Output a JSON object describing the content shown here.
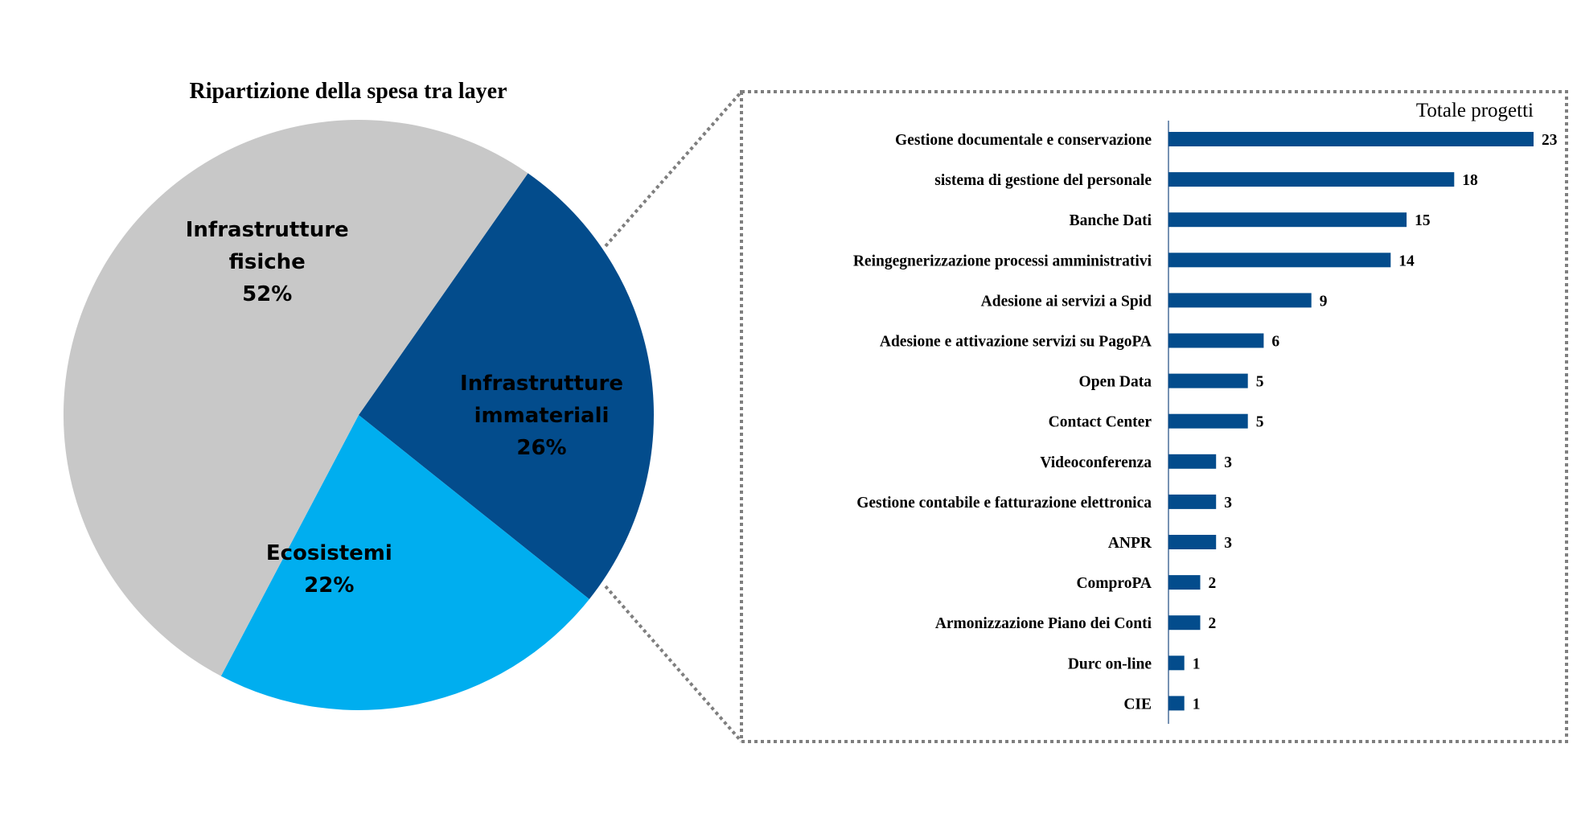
{
  "chart_data": [
    {
      "type": "pie",
      "title": "Ripartizione della spesa tra layer",
      "slices": [
        {
          "name_lines": [
            "Infrastrutture",
            "immateriali"
          ],
          "value": 26,
          "label": "26%",
          "color": "#034C8C",
          "label_color": "#000000"
        },
        {
          "name_lines": [
            "Ecosistemi"
          ],
          "value": 22,
          "label": "22%",
          "color": "#00AEEF",
          "label_color": "#000000"
        },
        {
          "name_lines": [
            "Infrastrutture",
            "fisiche"
          ],
          "value": 52,
          "label": "52%",
          "color": "#C8C8C8",
          "label_color": "#000000"
        }
      ],
      "start_angle_deg": -55,
      "direction": "clockwise"
    },
    {
      "type": "bar",
      "orientation": "horizontal",
      "title": "Totale progetti",
      "bar_color": "#034C8C",
      "categories": [
        "Gestione documentale e conservazione",
        "sistema di gestione del personale",
        "Banche Dati",
        "Reingegnerizzazione processi amministrativi",
        "Adesione ai servizi a Spid",
        "Adesione e attivazione servizi su PagoPA",
        "Open Data",
        "Contact Center",
        "Videoconferenza",
        "Gestione contabile e fatturazione elettronica",
        "ANPR",
        "ComproPA",
        "Armonizzazione Piano dei Conti",
        "Durc on-line",
        "CIE"
      ],
      "values": [
        23,
        18,
        15,
        14,
        9,
        6,
        5,
        5,
        3,
        3,
        3,
        2,
        2,
        1,
        1
      ],
      "xlim": [
        0,
        23
      ]
    }
  ],
  "connector": {
    "style": "dotted",
    "color": "#7F7F7F"
  }
}
